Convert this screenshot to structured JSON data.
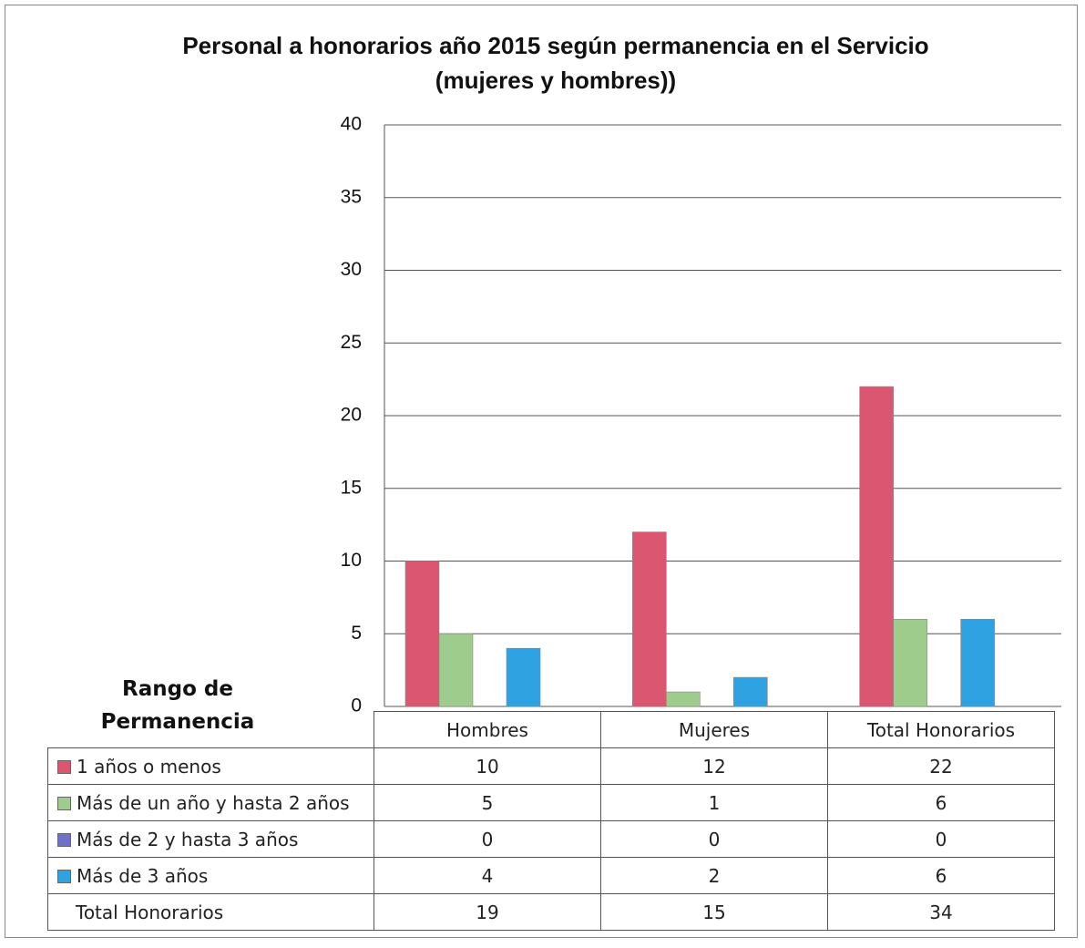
{
  "chart_data": {
    "type": "bar",
    "title": [
      "Personal a honorarios año 2015 según permanencia en el Servicio",
      "(mujeres y hombres))"
    ],
    "categories": [
      "Hombres",
      "Mujeres",
      "Total Honorarios"
    ],
    "series": [
      {
        "name": "1 años o menos",
        "color": "#db5670",
        "values": [
          10,
          12,
          22
        ]
      },
      {
        "name": "Más de un año y hasta 2 años",
        "color": "#9dcc8c",
        "values": [
          5,
          1,
          6
        ]
      },
      {
        "name": "Más de 2 y hasta 3 años",
        "color": "#6f70c8",
        "values": [
          0,
          0,
          0
        ]
      },
      {
        "name": "Más de 3 años",
        "color": "#2fa2e2",
        "values": [
          4,
          2,
          6
        ]
      }
    ],
    "ylim": [
      0,
      40
    ],
    "yticks": [
      0,
      5,
      10,
      15,
      20,
      25,
      30,
      35,
      40
    ],
    "grid": true,
    "table_header": "Rango de Permanencia",
    "total_row": {
      "label": "Total Honorarios",
      "values": [
        19,
        15,
        34
      ]
    }
  }
}
